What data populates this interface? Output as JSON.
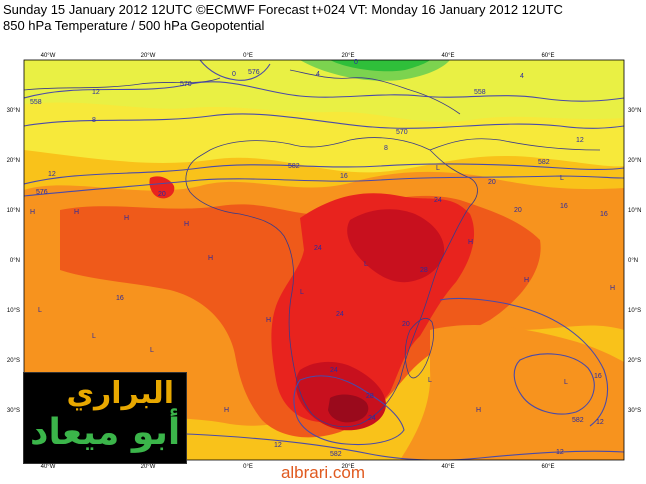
{
  "header": {
    "line1": "Sunday 15 January 2012 12UTC ©ECMWF Forecast t+024 VT: Monday 16 January 2012 12UTC",
    "line2": "850 hPa Temperature / 500 hPa Geopotential"
  },
  "axes": {
    "top_labels": [
      "40°W",
      "20°W",
      "0°E",
      "20°E",
      "40°E",
      "60°E"
    ],
    "bottom_labels": [
      "40°W",
      "20°W",
      "0°E",
      "20°E",
      "40°E",
      "60°E"
    ],
    "left_labels": [
      "30°N",
      "20°N",
      "10°N",
      "0°N",
      "10°S",
      "20°S",
      "30°S"
    ],
    "right_labels": [
      "30°N",
      "20°N",
      "10°N",
      "0°N",
      "10°S",
      "20°S",
      "30°S"
    ]
  },
  "contour_labels": {
    "geopotential": [
      "558",
      "570",
      "576",
      "582",
      "582",
      "582",
      "576",
      "570",
      "582",
      "558"
    ],
    "temperature": [
      "12",
      "8",
      "12",
      "16",
      "16",
      "20",
      "24",
      "24",
      "28",
      "24",
      "20",
      "24",
      "20",
      "20",
      "16",
      "16",
      "12",
      "16",
      "24",
      "28",
      "12",
      "12",
      "12",
      "4",
      "4",
      "0",
      "0",
      "8"
    ]
  },
  "palette": {
    "cold": "#7cd34f",
    "cool": "#d8f04a",
    "mild": "#f7e93a",
    "warm": "#f9c21a",
    "hot": "#f7931e",
    "hotter": "#ef5a1a",
    "very_hot": "#e8231e",
    "extreme": "#c8101e",
    "max": "#9a0a1c",
    "land_border": "#3b3b8a",
    "contour": "#4a4aa8"
  },
  "watermark": {
    "logo_line1": "البراري",
    "logo_line2": "أبو ميعاد",
    "site": "albrari.com"
  }
}
